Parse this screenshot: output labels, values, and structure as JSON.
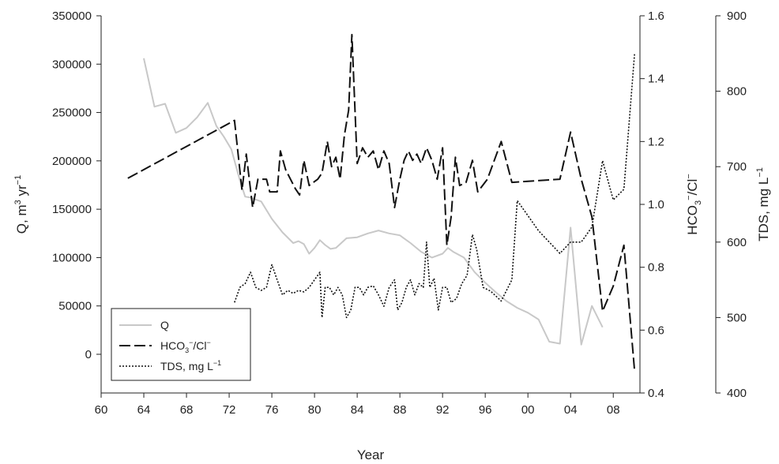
{
  "chart_data": {
    "type": "line",
    "xlabel": "Year",
    "x_tick_labels": [
      "60",
      "64",
      "68",
      "72",
      "76",
      "80",
      "84",
      "88",
      "92",
      "96",
      "00",
      "04",
      "08"
    ],
    "axes": {
      "left": {
        "label_main": "Q, m",
        "label_sup1": "3",
        "label_mid": " yr",
        "label_sup2": "−1",
        "ylim": [
          -40000,
          350000
        ],
        "ticks": [
          "0",
          "50000",
          "100000",
          "150000",
          "200000",
          "250000",
          "300000",
          "350000"
        ]
      },
      "right1": {
        "label_main": "HCO",
        "label_sub": "3",
        "label_sup": "−",
        "label_tail": "/Cl",
        "label_sup2": "−",
        "ylim": [
          0.4,
          1.6
        ],
        "ticks": [
          "0.4",
          "0.6",
          "0.8",
          "1.0",
          "1.2",
          "1.4",
          "1.6"
        ]
      },
      "right2": {
        "label_main": "TDS, mg L",
        "label_sup": "−1",
        "ylim": [
          400,
          900
        ],
        "ticks": [
          "400",
          "500",
          "600",
          "700",
          "800",
          "900"
        ]
      }
    },
    "legend": {
      "placement": "bottom-left",
      "entries": [
        {
          "name": "Q",
          "style": "solid-gray"
        },
        {
          "name_main": "HCO",
          "name_sub": "3",
          "name_sup": "−",
          "name_tail": "/Cl",
          "name_sup2": "−",
          "style": "long-dash"
        },
        {
          "name_main": "TDS, mg L",
          "name_sup": "−1",
          "style": "dotted"
        }
      ]
    },
    "series": [
      {
        "axis": "left",
        "color": "#c8c8c8",
        "points": [
          [
            64,
            306000
          ],
          [
            65,
            256000
          ],
          [
            66,
            259000
          ],
          [
            67,
            229000
          ],
          [
            68,
            234000
          ],
          [
            69,
            245000
          ],
          [
            70,
            260000
          ],
          [
            70.8,
            236000
          ],
          [
            71.5,
            225000
          ],
          [
            72.2,
            212000
          ],
          [
            73,
            180000
          ],
          [
            73.5,
            163000
          ],
          [
            74,
            162000
          ],
          [
            74.5,
            160000
          ],
          [
            75,
            158000
          ],
          [
            76,
            140000
          ],
          [
            77,
            126000
          ],
          [
            78,
            115000
          ],
          [
            78.5,
            117000
          ],
          [
            79,
            114000
          ],
          [
            79.5,
            104000
          ],
          [
            80,
            110000
          ],
          [
            80.5,
            118000
          ],
          [
            81,
            113000
          ],
          [
            81.5,
            109000
          ],
          [
            82,
            110000
          ],
          [
            83,
            120000
          ],
          [
            84,
            121000
          ],
          [
            85,
            125000
          ],
          [
            86,
            128000
          ],
          [
            87,
            125000
          ],
          [
            88,
            123000
          ],
          [
            89,
            115000
          ],
          [
            90,
            106000
          ],
          [
            91,
            100000
          ],
          [
            92,
            104000
          ],
          [
            92.5,
            110000
          ],
          [
            93,
            106000
          ],
          [
            94,
            100000
          ],
          [
            95,
            85000
          ],
          [
            96,
            74000
          ],
          [
            97,
            64000
          ],
          [
            98,
            55000
          ],
          [
            99,
            48000
          ],
          [
            100,
            43000
          ],
          [
            101,
            36000
          ],
          [
            102,
            13000
          ],
          [
            103,
            11000
          ],
          [
            104,
            131000
          ],
          [
            105,
            10000
          ],
          [
            106,
            50000
          ],
          [
            107,
            28000
          ]
        ]
      },
      {
        "axis": "right1",
        "color": "#111111",
        "dash": "14 5",
        "points": [
          [
            62.5,
            1.083
          ],
          [
            72.5,
            1.267
          ],
          [
            73.2,
            1.045
          ],
          [
            73.6,
            1.16
          ],
          [
            74.2,
            0.99
          ],
          [
            74.7,
            1.08
          ],
          [
            75.5,
            1.08
          ],
          [
            75.8,
            1.04
          ],
          [
            76.5,
            1.04
          ],
          [
            76.8,
            1.17
          ],
          [
            77.3,
            1.11
          ],
          [
            78.2,
            1.05
          ],
          [
            78.6,
            1.03
          ],
          [
            79,
            1.14
          ],
          [
            79.5,
            1.06
          ],
          [
            80.3,
            1.08
          ],
          [
            80.7,
            1.1
          ],
          [
            81.2,
            1.2
          ],
          [
            81.6,
            1.12
          ],
          [
            82,
            1.15
          ],
          [
            82.4,
            1.08
          ],
          [
            82.8,
            1.22
          ],
          [
            83.2,
            1.3
          ],
          [
            83.5,
            1.54
          ],
          [
            84,
            1.13
          ],
          [
            84.5,
            1.18
          ],
          [
            85,
            1.15
          ],
          [
            85.5,
            1.17
          ],
          [
            86,
            1.11
          ],
          [
            86.5,
            1.17
          ],
          [
            87,
            1.13
          ],
          [
            87.5,
            0.99
          ],
          [
            88,
            1.08
          ],
          [
            88.4,
            1.14
          ],
          [
            88.8,
            1.17
          ],
          [
            89.2,
            1.14
          ],
          [
            89.6,
            1.16
          ],
          [
            90,
            1.13
          ],
          [
            90.5,
            1.18
          ],
          [
            91,
            1.14
          ],
          [
            91.5,
            1.08
          ],
          [
            92,
            1.18
          ],
          [
            92.4,
            0.87
          ],
          [
            92.8,
            0.96
          ],
          [
            93.2,
            1.15
          ],
          [
            93.6,
            1.06
          ],
          [
            94.2,
            1.07
          ],
          [
            94.8,
            1.14
          ],
          [
            95.3,
            1.04
          ],
          [
            96.2,
            1.08
          ],
          [
            97.5,
            1.2
          ],
          [
            98.5,
            1.07
          ],
          [
            103,
            1.08
          ],
          [
            104,
            1.23
          ],
          [
            105,
            1.08
          ],
          [
            106,
            0.96
          ],
          [
            107,
            0.66
          ],
          [
            108,
            0.74
          ],
          [
            109,
            0.87
          ],
          [
            110,
            0.47
          ]
        ]
      },
      {
        "axis": "right2",
        "color": "#111111",
        "dash": "2 2",
        "points": [
          [
            72.5,
            520
          ],
          [
            73,
            540
          ],
          [
            73.5,
            545
          ],
          [
            74,
            560
          ],
          [
            74.5,
            540
          ],
          [
            75,
            536
          ],
          [
            75.5,
            540
          ],
          [
            76,
            570
          ],
          [
            76.5,
            550
          ],
          [
            77,
            530
          ],
          [
            77.5,
            536
          ],
          [
            78,
            532
          ],
          [
            78.5,
            536
          ],
          [
            79,
            534
          ],
          [
            79.5,
            540
          ],
          [
            80,
            550
          ],
          [
            80.5,
            560
          ],
          [
            80.7,
            500
          ],
          [
            81,
            540
          ],
          [
            81.4,
            540
          ],
          [
            81.8,
            530
          ],
          [
            82.2,
            540
          ],
          [
            82.6,
            530
          ],
          [
            83,
            500
          ],
          [
            83.4,
            510
          ],
          [
            83.8,
            540
          ],
          [
            84.2,
            540
          ],
          [
            84.6,
            530
          ],
          [
            85,
            540
          ],
          [
            85.5,
            542
          ],
          [
            86,
            530
          ],
          [
            86.5,
            515
          ],
          [
            87,
            540
          ],
          [
            87.5,
            550
          ],
          [
            87.8,
            510
          ],
          [
            88.2,
            520
          ],
          [
            88.6,
            540
          ],
          [
            89,
            550
          ],
          [
            89.4,
            530
          ],
          [
            89.8,
            545
          ],
          [
            90.2,
            540
          ],
          [
            90.5,
            600
          ],
          [
            90.8,
            540
          ],
          [
            91.2,
            552
          ],
          [
            91.6,
            510
          ],
          [
            92,
            540
          ],
          [
            92.4,
            540
          ],
          [
            92.8,
            520
          ],
          [
            93.3,
            525
          ],
          [
            93.8,
            545
          ],
          [
            94.3,
            556
          ],
          [
            94.8,
            610
          ],
          [
            95.2,
            590
          ],
          [
            95.8,
            540
          ],
          [
            96.5,
            535
          ],
          [
            97.5,
            522
          ],
          [
            98.5,
            550
          ],
          [
            99,
            655
          ],
          [
            100,
            635
          ],
          [
            101,
            615
          ],
          [
            103,
            585
          ],
          [
            104,
            600
          ],
          [
            105,
            600
          ],
          [
            106,
            620
          ],
          [
            107,
            708
          ],
          [
            108,
            656
          ],
          [
            109,
            670
          ],
          [
            110,
            850
          ]
        ]
      }
    ]
  }
}
